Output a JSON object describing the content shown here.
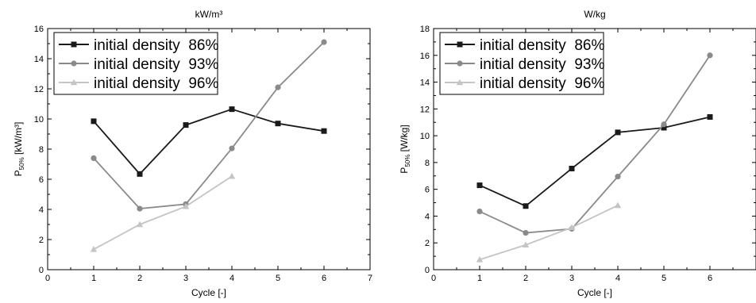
{
  "chart_data": [
    {
      "type": "line",
      "title": "kW/m³",
      "ylabel_base": "P",
      "ylabel_sub": "50%",
      "ylabel_unit": "[kW/m³]",
      "xlabel": "Cycle [-]",
      "xlim": [
        0,
        7
      ],
      "ylim": [
        0,
        16
      ],
      "xticks": [
        0,
        1,
        2,
        3,
        4,
        5,
        6,
        7
      ],
      "yticks": [
        0,
        2,
        4,
        6,
        8,
        10,
        12,
        14,
        16
      ],
      "legend_position": "top-left",
      "series": [
        {
          "name": "initial density  86%",
          "marker": "square",
          "color": "#1a1a1a",
          "x": [
            1,
            2,
            3,
            4,
            5,
            6
          ],
          "y": [
            9.85,
            6.35,
            9.6,
            10.65,
            9.7,
            9.2
          ]
        },
        {
          "name": "initial density  93%",
          "marker": "circle",
          "color": "#8a8a8a",
          "x": [
            1,
            2,
            3,
            4,
            5,
            6
          ],
          "y": [
            7.4,
            4.05,
            4.35,
            8.05,
            12.1,
            15.1
          ]
        },
        {
          "name": "initial density  96%",
          "marker": "triangle",
          "color": "#c4c4c4",
          "x": [
            1,
            2,
            3,
            4
          ],
          "y": [
            1.35,
            3.0,
            4.2,
            6.2
          ]
        }
      ]
    },
    {
      "type": "line",
      "title": "W/kg",
      "ylabel_base": "P",
      "ylabel_sub": "50%",
      "ylabel_unit": "[W/kg]",
      "xlabel": "Cycle [-]",
      "xlim": [
        0,
        7
      ],
      "ylim": [
        0,
        18
      ],
      "xticks": [
        0,
        1,
        2,
        3,
        4,
        5,
        6
      ],
      "yticks": [
        0,
        2,
        4,
        6,
        8,
        10,
        12,
        14,
        16,
        18
      ],
      "legend_position": "top-left",
      "series": [
        {
          "name": "initial density  86%",
          "marker": "square",
          "color": "#1a1a1a",
          "x": [
            1,
            2,
            3,
            4,
            5,
            6
          ],
          "y": [
            6.3,
            4.75,
            7.55,
            10.25,
            10.6,
            11.4
          ]
        },
        {
          "name": "initial density  93%",
          "marker": "circle",
          "color": "#8a8a8a",
          "x": [
            1,
            2,
            3,
            4,
            5,
            6
          ],
          "y": [
            4.35,
            2.75,
            3.05,
            6.95,
            10.85,
            16.0
          ]
        },
        {
          "name": "initial density  96%",
          "marker": "triangle",
          "color": "#c4c4c4",
          "x": [
            1,
            2,
            3,
            4
          ],
          "y": [
            0.75,
            1.85,
            3.15,
            4.8
          ]
        }
      ]
    }
  ]
}
